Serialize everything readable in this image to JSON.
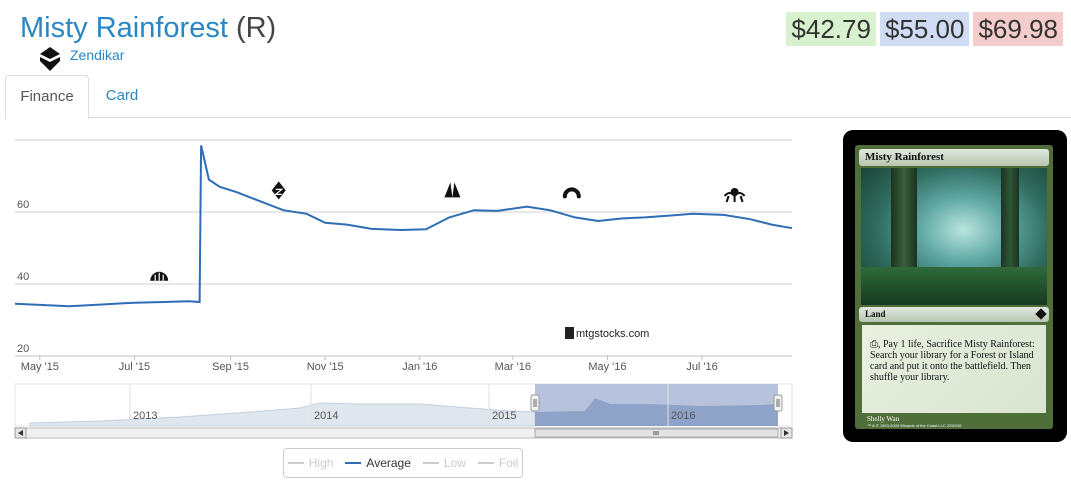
{
  "card": {
    "name": "Misty Rainforest",
    "rarity": "(R)",
    "set_name": "Zendikar",
    "set_icon": "zendikar-set-icon"
  },
  "prices": {
    "low": "$42.79",
    "average": "$55.00",
    "high": "$69.98",
    "colors": {
      "low": "#d8f2cf",
      "average": "#cfdcf3",
      "high": "#f4cccc"
    }
  },
  "tabs": [
    {
      "label": "Finance",
      "active": true
    },
    {
      "label": "Card",
      "active": false
    }
  ],
  "chart_data": {
    "type": "line",
    "watermark": "mtgstocks.com",
    "y_ticks": [
      "20",
      "40",
      "60"
    ],
    "ylim": [
      20,
      80
    ],
    "x_ticks": [
      "May '15",
      "Jul '15",
      "Sep '15",
      "Nov '15",
      "Jan '16",
      "Mar '16",
      "May '16",
      "Jul '16"
    ],
    "series": [
      {
        "name": "Average",
        "color": "#2f6db5",
        "points": [
          [
            "2015-04-15",
            34.5
          ],
          [
            "2015-05-01",
            34.2
          ],
          [
            "2015-05-20",
            33.8
          ],
          [
            "2015-06-10",
            34.3
          ],
          [
            "2015-07-01",
            34.8
          ],
          [
            "2015-07-20",
            35.0
          ],
          [
            "2015-08-05",
            35.2
          ],
          [
            "2015-08-12",
            35.0
          ],
          [
            "2015-08-13",
            78.5
          ],
          [
            "2015-08-18",
            69.0
          ],
          [
            "2015-08-25",
            67.0
          ],
          [
            "2015-09-05",
            65.5
          ],
          [
            "2015-09-20",
            63.0
          ],
          [
            "2015-10-05",
            60.5
          ],
          [
            "2015-10-20",
            59.5
          ],
          [
            "2015-11-01",
            57.0
          ],
          [
            "2015-11-15",
            56.5
          ],
          [
            "2015-12-01",
            55.3
          ],
          [
            "2015-12-20",
            55.0
          ],
          [
            "2016-01-05",
            55.2
          ],
          [
            "2016-01-20",
            58.5
          ],
          [
            "2016-02-05",
            60.5
          ],
          [
            "2016-02-20",
            60.3
          ],
          [
            "2016-03-10",
            61.5
          ],
          [
            "2016-03-25",
            60.5
          ],
          [
            "2016-04-10",
            58.5
          ],
          [
            "2016-04-25",
            57.5
          ],
          [
            "2016-05-10",
            58.2
          ],
          [
            "2016-05-25",
            58.5
          ],
          [
            "2016-06-10",
            59.0
          ],
          [
            "2016-06-25",
            59.5
          ],
          [
            "2016-07-15",
            59.2
          ],
          [
            "2016-08-01",
            58.0
          ],
          [
            "2016-08-15",
            56.5
          ],
          [
            "2016-08-28",
            55.5
          ]
        ]
      }
    ],
    "set_release_markers": [
      {
        "date": "2015-07-17",
        "value": 42,
        "icon": "magic-origins-icon"
      },
      {
        "date": "2015-10-02",
        "value": 66,
        "icon": "battle-for-zendikar-icon"
      },
      {
        "date": "2016-01-22",
        "value": 66,
        "icon": "oath-of-the-gatewatch-icon"
      },
      {
        "date": "2016-04-08",
        "value": 66,
        "icon": "shadows-over-innistrad-icon"
      },
      {
        "date": "2016-07-22",
        "value": 65,
        "icon": "eldritch-moon-icon"
      }
    ],
    "navigator": {
      "year_labels": [
        "2013",
        "2014",
        "2015",
        "2016"
      ],
      "selected_range": [
        "2015-04-15",
        "2016-08-28"
      ]
    }
  },
  "legend": [
    {
      "label": "High",
      "active": false
    },
    {
      "label": "Average",
      "active": true
    },
    {
      "label": "Low",
      "active": false
    },
    {
      "label": "Foil",
      "active": false
    }
  ],
  "card_image": {
    "name": "Misty Rainforest",
    "type_line": "Land",
    "rules_text": "⎙, Pay 1 life, Sacrifice Misty Rainforest: Search your library for a Forest or Island card and put it onto the battlefield. Then shuffle your library.",
    "artist": "Shelly Wan",
    "copyright": "™ & © 1993-2009 Wizards of the Coast LLC 229/249"
  }
}
